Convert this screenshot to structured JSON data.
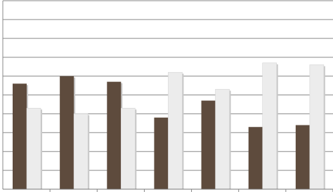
{
  "chart_data": {
    "type": "bar",
    "categories": [
      null,
      null,
      null,
      null,
      null,
      null,
      null
    ],
    "series": [
      {
        "color": "#5e4b3d",
        "values": [
          5.6,
          6.0,
          5.7,
          3.8,
          4.7,
          3.3,
          3.4
        ]
      },
      {
        "color": "#ececec",
        "values": [
          4.3,
          4.0,
          4.3,
          6.2,
          5.3,
          6.7,
          6.6
        ]
      }
    ],
    "ylim": [
      0,
      10
    ],
    "yticks": [
      0,
      1,
      2,
      3,
      4,
      5,
      6,
      7,
      8,
      9,
      10
    ],
    "grid": true
  }
}
